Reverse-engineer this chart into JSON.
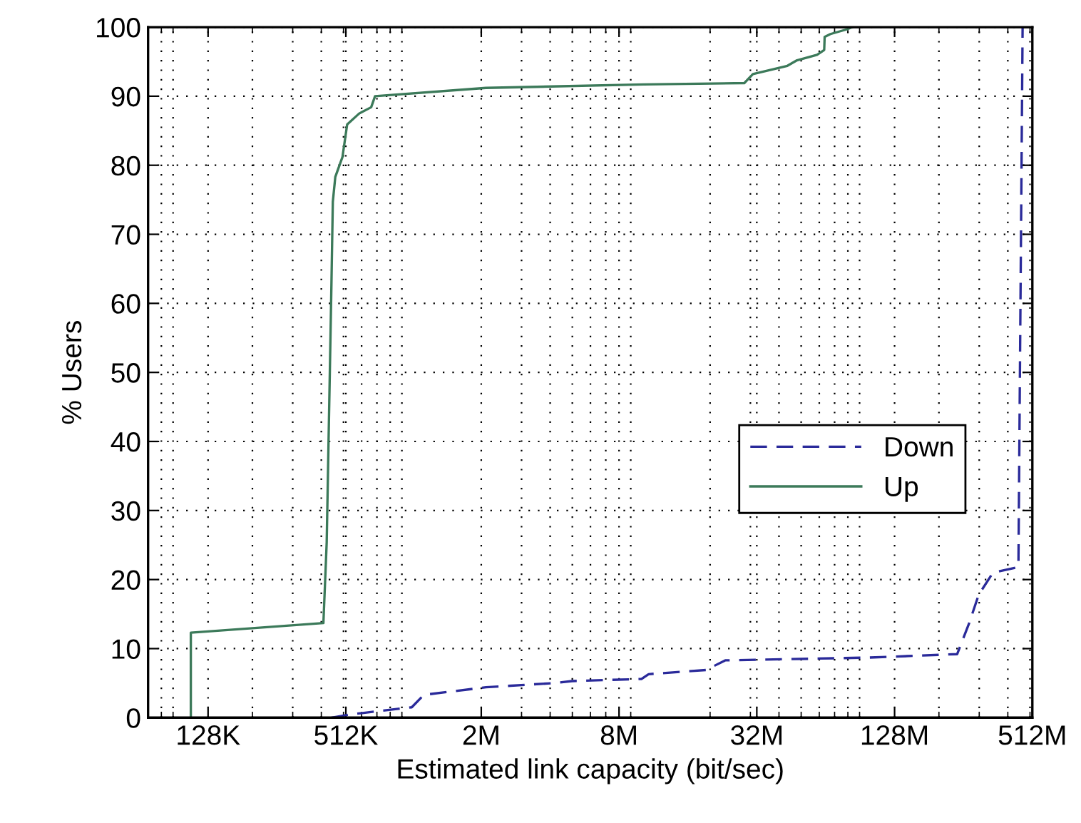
{
  "chart_data": {
    "type": "line",
    "xlabel": "Estimated link capacity (bit/sec)",
    "ylabel": "% Users",
    "log": "x",
    "xlim": [
      70000,
      512000000
    ],
    "xticks": [
      {
        "value": 128000,
        "label": "128K"
      },
      {
        "value": 512000,
        "label": "512K"
      },
      {
        "value": 2000000,
        "label": "2M"
      },
      {
        "value": 8000000,
        "label": "8M"
      },
      {
        "value": 32000000,
        "label": "32M"
      },
      {
        "value": 128000000,
        "label": "128M"
      },
      {
        "value": 512000000,
        "label": "512M"
      }
    ],
    "ylim": [
      0,
      100
    ],
    "yticks": [
      0,
      10,
      20,
      30,
      40,
      50,
      60,
      70,
      80,
      90,
      100
    ],
    "grid": true,
    "legend": "center right",
    "series": [
      {
        "name": "Down",
        "color": "#2a2a9a",
        "line_style": "dashed",
        "x": [
          442800,
          545300,
          993700,
          1122000,
          2097152,
          4117000,
          4988000,
          10020000,
          10770000,
          19190000,
          23290000,
          34050000,
          98650000,
          240300000,
          271200000,
          298300000,
          344600000,
          445000000,
          464200000
        ],
        "values": [
          0,
          0.5,
          1.5,
          3.3,
          4.4,
          5.0,
          5.3,
          5.6,
          6.3,
          6.9,
          8.3,
          8.4,
          8.7,
          9.2,
          13.7,
          17.8,
          21.0,
          21.8,
          100
        ]
      },
      {
        "name": "Up",
        "color": "#3c7a5a",
        "line_style": "solid",
        "x": [
          107600,
          107600,
          408500,
          422300,
          442800,
          449100,
          460400,
          494900,
          518800,
          585700,
          660600,
          686800,
          2097152,
          10270000,
          28220000,
          30770000,
          43520000,
          47950000,
          58660000,
          63050000,
          63330000,
          67108864,
          79460000,
          83350000
        ],
        "values": [
          0,
          12.3,
          13.7,
          25.4,
          62.6,
          74.7,
          78.3,
          81.2,
          85.9,
          87.5,
          88.4,
          90.0,
          91.2,
          91.7,
          91.9,
          93.2,
          94.4,
          95.2,
          96.0,
          96.7,
          98.6,
          99.0,
          99.7,
          100
        ]
      }
    ]
  }
}
